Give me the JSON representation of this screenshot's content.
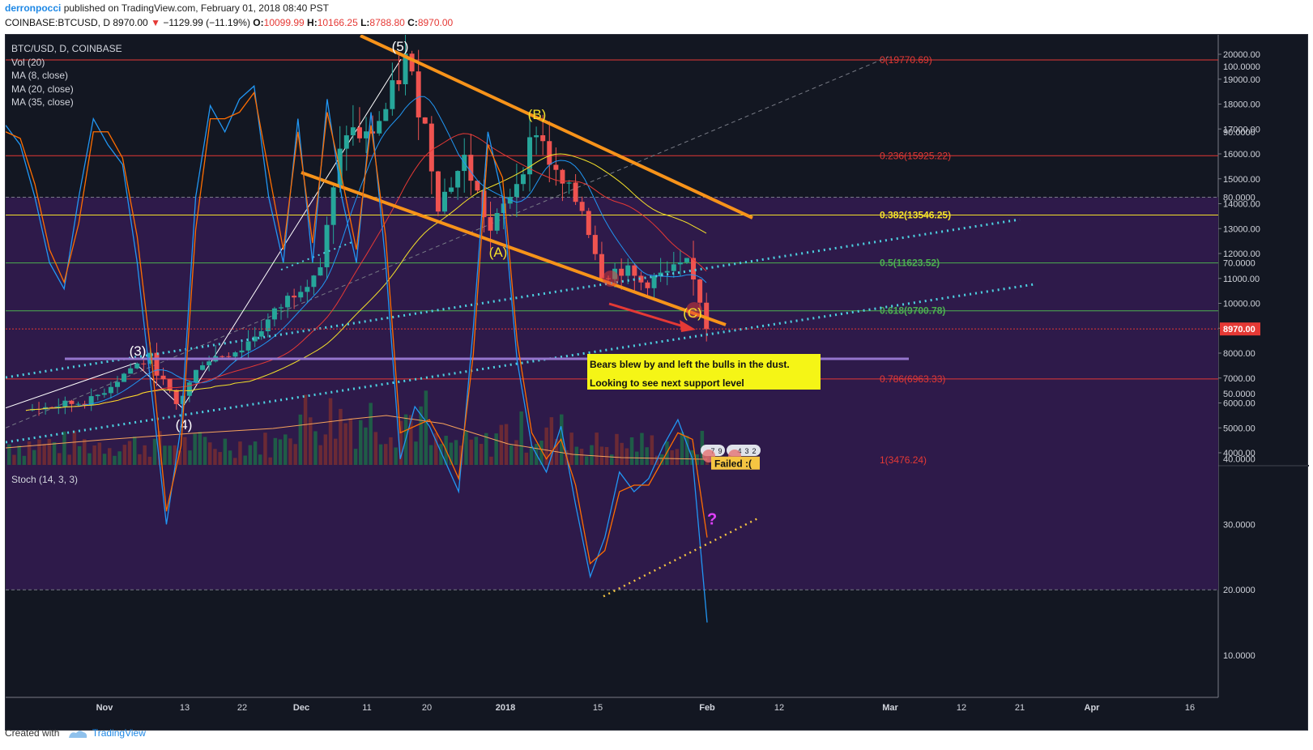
{
  "header": {
    "author": "derronpocci",
    "published": " published on TradingView.com, February 01, 2018 08:40 PST",
    "symbol_line": "COINBASE:BTCUSD, D  8970.00",
    "change": "−1129.99 (−11.19%)",
    "ohlc": [
      {
        "k": "O:",
        "v": "10099.99"
      },
      {
        "k": "H:",
        "v": "10166.25"
      },
      {
        "k": "L:",
        "v": "8788.80"
      },
      {
        "k": "C:",
        "v": "8970.00"
      }
    ]
  },
  "legend": {
    "title": "BTC/USD, D, COINBASE",
    "items": [
      "Vol (20)",
      "MA (8, close)",
      "MA (20, close)",
      "MA (35, close)"
    ],
    "stoch": "Stoch (14, 3, 3)"
  },
  "footer": {
    "created": "Created with",
    "brand": "TradingView"
  },
  "chart_data": [
    {
      "type": "line",
      "title": "BTC/USD, D, COINBASE",
      "ylim": [
        3500,
        20500
      ],
      "yticks": [
        "20000.00",
        "19000.00",
        "18000.00",
        "17000.00",
        "16000.00",
        "15000.00",
        "14000.00",
        "13000.00",
        "12000.00",
        "11000.00",
        "10000.00",
        "9000.00",
        "8000.00",
        "7000.00",
        "6000.00",
        "5000.00",
        "4000.00"
      ],
      "xticks": [
        "Nov",
        "13",
        "22",
        "Dec",
        "11",
        "20",
        "2018",
        "15",
        "Feb",
        "12",
        "Mar",
        "12",
        "21",
        "Apr",
        "16"
      ],
      "last_price": "8970.00",
      "close_path": [
        {
          "x": "2017-10-20",
          "y": 5700
        },
        {
          "x": "2017-10-25",
          "y": 5900
        },
        {
          "x": "2017-10-30",
          "y": 6100
        },
        {
          "x": "2017-11-05",
          "y": 7400
        },
        {
          "x": "2017-11-08",
          "y": 7800
        },
        {
          "x": "2017-11-10",
          "y": 6800
        },
        {
          "x": "2017-11-12",
          "y": 5900
        },
        {
          "x": "2017-11-16",
          "y": 7700
        },
        {
          "x": "2017-11-22",
          "y": 8200
        },
        {
          "x": "2017-11-26",
          "y": 9300
        },
        {
          "x": "2017-11-30",
          "y": 10500
        },
        {
          "x": "2017-12-04",
          "y": 11500
        },
        {
          "x": "2017-12-07",
          "y": 16000
        },
        {
          "x": "2017-12-08",
          "y": 17000
        },
        {
          "x": "2017-12-11",
          "y": 16600
        },
        {
          "x": "2017-12-14",
          "y": 17800
        },
        {
          "x": "2017-12-17",
          "y": 19800
        },
        {
          "x": "2017-12-20",
          "y": 17000
        },
        {
          "x": "2017-12-22",
          "y": 14000
        },
        {
          "x": "2017-12-26",
          "y": 15800
        },
        {
          "x": "2017-12-30",
          "y": 12800
        },
        {
          "x": "2018-01-03",
          "y": 15000
        },
        {
          "x": "2018-01-06",
          "y": 17100
        },
        {
          "x": "2018-01-09",
          "y": 15000
        },
        {
          "x": "2018-01-13",
          "y": 13800
        },
        {
          "x": "2018-01-16",
          "y": 11200
        },
        {
          "x": "2018-01-19",
          "y": 11400
        },
        {
          "x": "2018-01-22",
          "y": 10800
        },
        {
          "x": "2018-01-26",
          "y": 11200
        },
        {
          "x": "2018-01-29",
          "y": 11500
        },
        {
          "x": "2018-01-31",
          "y": 10100
        },
        {
          "x": "2018-02-01",
          "y": 8970
        }
      ],
      "fib_levels": [
        {
          "label": "0(19770.69)",
          "value": 19770.69,
          "color": "#e53935"
        },
        {
          "label": "0.236(15925.22)",
          "value": 15925.22,
          "color": "#e53935"
        },
        {
          "label": "0.382(13546.25)",
          "value": 13546.25,
          "color": "#f5e12a"
        },
        {
          "label": "0.5(11623.52)",
          "value": 11623.52,
          "color": "#4caf50"
        },
        {
          "label": "0.618(9700.78)",
          "value": 9700.78,
          "color": "#4caf50"
        },
        {
          "label": "0.786(6963.33)",
          "value": 6963.33,
          "color": "#e53935"
        },
        {
          "label": "1(3476.24)",
          "value": 3476.24,
          "color": "#e53935"
        }
      ],
      "wave_labels": [
        "(5)",
        "(B)",
        "(A)",
        "(3)",
        "(4)",
        "(C)"
      ],
      "annotation": [
        "Bears blew by and left the bulls in the dust.",
        "Looking to see next support level"
      ],
      "badges": [
        "7",
        "9",
        "4",
        "3",
        "2"
      ]
    },
    {
      "type": "line",
      "title": "Stoch (14, 3, 3)",
      "ylim": [
        10,
        100
      ],
      "yticks": [
        "100.0000",
        "90.0000",
        "80.0000",
        "70.0000",
        "60.0000",
        "50.0000",
        "40.0000",
        "30.0000",
        "20.0000",
        "10.0000"
      ],
      "band": [
        20,
        80
      ],
      "series": [
        {
          "color": "#2196f3",
          "points": [
            91,
            88,
            80,
            70,
            66,
            80,
            92,
            88,
            85,
            70,
            50,
            30,
            45,
            80,
            94,
            90,
            95,
            97,
            80,
            70,
            92,
            70,
            95,
            80,
            70,
            93,
            70,
            40,
            48,
            45,
            40,
            35,
            60,
            90,
            80,
            55,
            42,
            38,
            45,
            33,
            22,
            28,
            38,
            35,
            37,
            42,
            46,
            40,
            15
          ]
        },
        {
          "color": "#ff6d00",
          "points": [
            90,
            89,
            82,
            72,
            67,
            76,
            90,
            90,
            86,
            74,
            55,
            32,
            42,
            75,
            92,
            92,
            93,
            96,
            84,
            72,
            90,
            73,
            93,
            83,
            72,
            91,
            74,
            44,
            45,
            46,
            42,
            37,
            56,
            88,
            83,
            58,
            44,
            40,
            43,
            36,
            24,
            26,
            35,
            36,
            36,
            40,
            44,
            43,
            28
          ]
        }
      ],
      "annotation": "Failed :(",
      "marker": "?"
    }
  ]
}
